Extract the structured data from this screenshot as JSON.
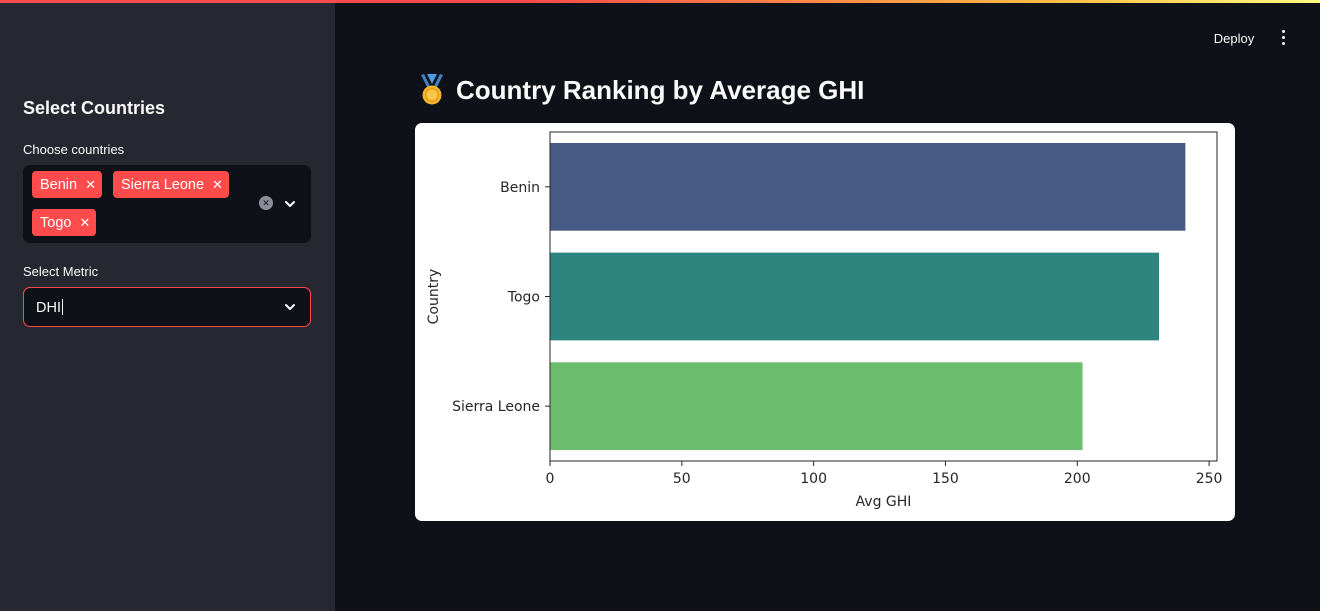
{
  "sidebar": {
    "title": "Select Countries",
    "countries_label": "Choose countries",
    "selected_countries": [
      "Benin",
      "Sierra Leone",
      "Togo"
    ],
    "metric_label": "Select Metric",
    "metric_value": "DHI"
  },
  "header": {
    "deploy_label": "Deploy"
  },
  "main": {
    "title": "Country Ranking by Average GHI",
    "title_icon": "medal-icon"
  },
  "colors": {
    "accent": "#ff4b4b",
    "sidebar_bg": "#262730",
    "app_bg": "#0e1117"
  },
  "chart_data": {
    "type": "bar",
    "orientation": "horizontal",
    "categories": [
      "Benin",
      "Togo",
      "Sierra Leone"
    ],
    "values": [
      241,
      231,
      202
    ],
    "bar_colors": [
      "#465a85",
      "#2e847e",
      "#6cbd6d"
    ],
    "xlabel": "Avg GHI",
    "ylabel": "Country",
    "xlim": [
      0,
      253
    ],
    "xticks": [
      0,
      50,
      100,
      150,
      200,
      250
    ],
    "grid": false,
    "legend": "none"
  }
}
